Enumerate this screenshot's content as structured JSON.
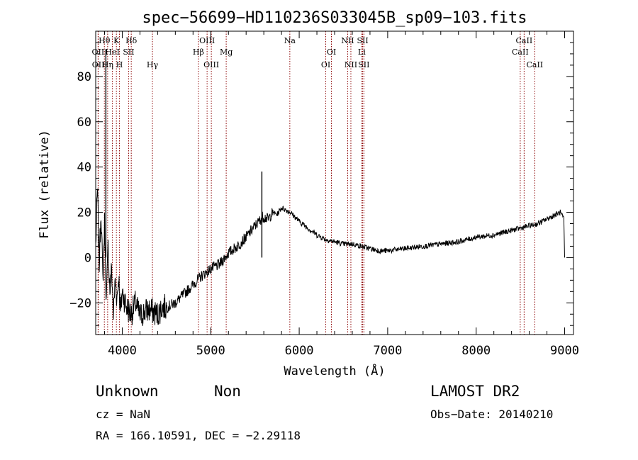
{
  "chart_data": {
    "type": "line",
    "title": "spec−56699−HD110236S033045B_sp09−103.fits",
    "xlabel": "Wavelength (Å)",
    "ylabel": "Flux (relative)",
    "xlim": [
      3700,
      9100
    ],
    "ylim": [
      -34,
      100
    ],
    "xticks": [
      4000,
      5000,
      6000,
      7000,
      8000,
      9000
    ],
    "xtick_labels": [
      "4000",
      "5000",
      "6000",
      "7000",
      "8000",
      "9000"
    ],
    "yticks": [
      -20,
      0,
      20,
      40,
      60,
      80
    ],
    "ytick_labels": [
      "−20",
      "0",
      "20",
      "40",
      "60",
      "80"
    ],
    "grid": false,
    "series": [
      {
        "color": "#000000",
        "x": [
          3700,
          3720,
          3740,
          3760,
          3780,
          3800,
          3820,
          3840,
          3860,
          3880,
          3900,
          3920,
          3940,
          3960,
          3980,
          4000,
          4050,
          4100,
          4150,
          4200,
          4250,
          4300,
          4350,
          4400,
          4450,
          4500,
          4600,
          4700,
          4800,
          4900,
          5000,
          5100,
          5200,
          5300,
          5400,
          5500,
          5550,
          5580,
          5600,
          5650,
          5700,
          5750,
          5800,
          5850,
          5900,
          5950,
          6000,
          6100,
          6200,
          6300,
          6400,
          6500,
          6600,
          6700,
          6800,
          6900,
          7000,
          7200,
          7400,
          7600,
          7800,
          8000,
          8200,
          8400,
          8500,
          8600,
          8700,
          8800,
          8850,
          8900,
          8950,
          8990,
          9000
        ],
        "y": [
          5,
          30,
          -3,
          22,
          -10,
          15,
          -20,
          5,
          -15,
          -5,
          -25,
          -10,
          -18,
          -8,
          -25,
          -15,
          -22,
          -25,
          -20,
          -26,
          -24,
          -23,
          -24,
          -25,
          -22,
          -22,
          -20,
          -16,
          -12,
          -8,
          -5,
          -3,
          2,
          5,
          9,
          14,
          16,
          18,
          18,
          17,
          20,
          19,
          22,
          21,
          20,
          18,
          16,
          13,
          10,
          8,
          7,
          6,
          6,
          5,
          4,
          3,
          3,
          4,
          5,
          6,
          7,
          9,
          10,
          12,
          13,
          14,
          15,
          17,
          18,
          19,
          20,
          17,
          0
        ]
      }
    ],
    "spikes": [
      {
        "x": 3815,
        "y": 92
      },
      {
        "x": 5578,
        "y": 38
      }
    ],
    "lines": [
      {
        "name": "Hθ",
        "x": 3798,
        "row": 0
      },
      {
        "name": "OII",
        "x": 3727,
        "row": 1
      },
      {
        "name": "OII",
        "x": 3729,
        "row": 2
      },
      {
        "name": "Hη",
        "x": 3835,
        "row": 2
      },
      {
        "name": "K",
        "x": 3934,
        "row": 0
      },
      {
        "name": "HeI",
        "x": 3889,
        "row": 1
      },
      {
        "name": "SII",
        "x": 4072,
        "row": 1
      },
      {
        "name": "H",
        "x": 3969,
        "row": 2
      },
      {
        "name": "Hδ",
        "x": 4102,
        "row": 0
      },
      {
        "name": "Hγ",
        "x": 4341,
        "row": 2
      },
      {
        "name": "OIII",
        "x": 4959,
        "row": 0
      },
      {
        "name": "Hβ",
        "x": 4861,
        "row": 1
      },
      {
        "name": "OIII",
        "x": 5007,
        "row": 2
      },
      {
        "name": "Mg",
        "x": 5175,
        "row": 1
      },
      {
        "name": "Na",
        "x": 5894,
        "row": 0
      },
      {
        "name": "OI",
        "x": 6364,
        "row": 1
      },
      {
        "name": "OI",
        "x": 6300,
        "row": 2
      },
      {
        "name": "NII",
        "x": 6548,
        "row": 0
      },
      {
        "name": "NII",
        "x": 6584,
        "row": 2
      },
      {
        "name": "SII",
        "x": 6717,
        "row": 0
      },
      {
        "name": "Li",
        "x": 6707,
        "row": 1
      },
      {
        "name": "SII",
        "x": 6731,
        "row": 2
      },
      {
        "name": "CaII",
        "x": 8542,
        "row": 0
      },
      {
        "name": "CaII",
        "x": 8498,
        "row": 1
      },
      {
        "name": "CaII",
        "x": 8662,
        "row": 2
      }
    ]
  },
  "info": {
    "class": "Unknown",
    "subclass": "Non",
    "survey": "LAMOST DR2",
    "cz": "cz = NaN",
    "obs_date": "Obs−Date: 20140210",
    "radec": "RA = 166.10591, DEC =  −2.29118"
  }
}
